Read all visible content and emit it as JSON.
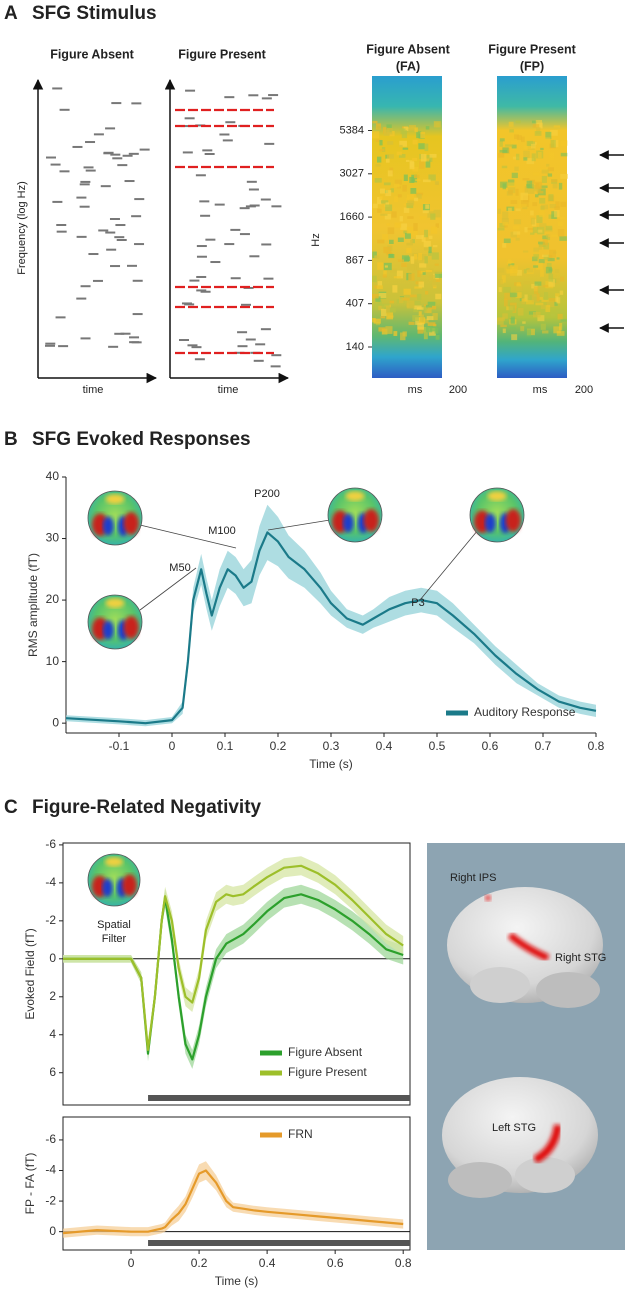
{
  "panels": [
    {
      "letter": "A",
      "title": "SFG Stimulus"
    },
    {
      "letter": "B",
      "title": "SFG Evoked Responses"
    },
    {
      "letter": "C",
      "title": "Figure-Related Negativity"
    }
  ],
  "panel_a": {
    "schematic_titles": [
      "Figure Absent",
      "Figure Present"
    ],
    "schematic_y_label": "Frequency (log Hz)",
    "schematic_x_label": "time",
    "spectrogram_titles": [
      [
        "Figure Absent",
        "(FA)"
      ],
      [
        "Figure Present",
        "(FP)"
      ]
    ],
    "spectrogram_y_label": "Hz",
    "spectrogram_yticks": [
      140,
      407,
      867,
      1660,
      3027,
      5384
    ],
    "spectrogram_x_unit": "ms",
    "spectrogram_x_end": 200
  },
  "brain_labels": [
    "Right IPS",
    "Right STG",
    "Left STG"
  ],
  "chart_data": [
    {
      "type": "line",
      "x_label": "Time (s)",
      "y_label": "RMS amplitude (fT)",
      "x": [
        -0.2,
        -0.1,
        -0.05,
        0,
        0.02,
        0.03,
        0.04,
        0.055,
        0.065,
        0.075,
        0.09,
        0.105,
        0.12,
        0.135,
        0.15,
        0.165,
        0.18,
        0.2,
        0.22,
        0.25,
        0.28,
        0.3,
        0.33,
        0.36,
        0.38,
        0.41,
        0.44,
        0.47,
        0.5,
        0.53,
        0.57,
        0.61,
        0.65,
        0.69,
        0.73,
        0.77,
        0.8
      ],
      "xlim": [
        -0.2,
        0.8
      ],
      "xticks": [
        -0.1,
        0,
        0.1,
        0.2,
        0.3,
        0.4,
        0.5,
        0.6,
        0.7,
        0.8
      ],
      "ylim": [
        -1.6,
        40
      ],
      "yticks": [
        0,
        10,
        20,
        30,
        40
      ],
      "legend": "lower right",
      "series": [
        {
          "name": "Auditory Response",
          "color": "#1b7a89",
          "band_color": "#93d1d8",
          "values": [
            0.8,
            0.3,
            0,
            0.5,
            2.5,
            10,
            20,
            25,
            21,
            17.5,
            22,
            25,
            24,
            22,
            23,
            28,
            31,
            29.5,
            27,
            25,
            22,
            19.5,
            17,
            16,
            17,
            18.5,
            19.5,
            20,
            19.5,
            17.5,
            14.5,
            11,
            8,
            5.5,
            3.5,
            2.5,
            2
          ],
          "error": [
            0.5,
            0.5,
            0.5,
            0.5,
            1,
            1.5,
            2,
            2.5,
            2.5,
            2.5,
            3,
            3,
            3,
            3,
            3.5,
            4,
            4.5,
            4,
            3.5,
            3,
            2.5,
            2,
            1.5,
            1.5,
            1.5,
            2,
            2,
            2,
            2,
            2,
            1.5,
            1.5,
            1.5,
            1,
            1,
            1,
            1
          ]
        }
      ],
      "annotations": [
        "M50",
        "M100",
        "P200",
        "P3"
      ]
    },
    {
      "type": "line",
      "y_label": "Evoked Field (fT)",
      "x": [
        -0.2,
        -0.1,
        0,
        0.03,
        0.05,
        0.07,
        0.09,
        0.1,
        0.12,
        0.14,
        0.16,
        0.18,
        0.2,
        0.22,
        0.25,
        0.28,
        0.3,
        0.33,
        0.36,
        0.4,
        0.45,
        0.5,
        0.55,
        0.6,
        0.65,
        0.7,
        0.75,
        0.8
      ],
      "xlim": [
        -0.2,
        0.82
      ],
      "ylim": [
        7.7,
        -6.1
      ],
      "yticks": [
        -6,
        -4,
        -2,
        0,
        2,
        4,
        6
      ],
      "zero_line": true,
      "significance": [
        0.05,
        0.82
      ],
      "legend": "lower right",
      "series": [
        {
          "name": "Figure Absent",
          "color": "#2ca02c",
          "band_color": "#9fd79a",
          "values": [
            0,
            0,
            0,
            1,
            5,
            2,
            -2,
            -3.2,
            -1,
            2,
            4.5,
            5.3,
            4,
            2,
            0,
            -0.8,
            -1,
            -1.3,
            -1.8,
            -2.5,
            -3.2,
            -3.4,
            -3.1,
            -2.6,
            -2,
            -1.3,
            -0.5,
            -0.2
          ],
          "error": [
            0.2,
            0.2,
            0.2,
            0.3,
            0.4,
            0.4,
            0.4,
            0.5,
            0.5,
            0.5,
            0.5,
            0.5,
            0.5,
            0.5,
            0.5,
            0.5,
            0.5,
            0.5,
            0.5,
            0.5,
            0.5,
            0.5,
            0.5,
            0.5,
            0.5,
            0.5,
            0.5,
            0.5
          ]
        },
        {
          "name": "Figure Present",
          "color": "#9dbf2a",
          "band_color": "#d6e6a3",
          "values": [
            0,
            0,
            0,
            1,
            4.8,
            2,
            -2,
            -3.3,
            -2,
            0.5,
            2,
            2.3,
            1,
            -1.5,
            -3,
            -3.4,
            -3.3,
            -3.4,
            -3.8,
            -4.3,
            -4.8,
            -4.9,
            -4.5,
            -3.9,
            -3.1,
            -2.2,
            -1.3,
            -0.7
          ],
          "error": [
            0.2,
            0.2,
            0.2,
            0.3,
            0.4,
            0.4,
            0.4,
            0.5,
            0.5,
            0.5,
            0.5,
            0.5,
            0.5,
            0.5,
            0.5,
            0.5,
            0.5,
            0.5,
            0.5,
            0.5,
            0.5,
            0.5,
            0.5,
            0.5,
            0.5,
            0.5,
            0.5,
            0.5
          ]
        }
      ],
      "annotations": [
        "Spatial",
        "Filter"
      ]
    },
    {
      "type": "line",
      "x_label": "Time (s)",
      "y_label": "FP - FA (fT)",
      "x": [
        -0.2,
        -0.1,
        0,
        0.03,
        0.05,
        0.07,
        0.09,
        0.1,
        0.12,
        0.14,
        0.16,
        0.18,
        0.2,
        0.22,
        0.25,
        0.28,
        0.3,
        0.33,
        0.36,
        0.4,
        0.45,
        0.5,
        0.55,
        0.6,
        0.65,
        0.7,
        0.75,
        0.8
      ],
      "xlim": [
        -0.2,
        0.82
      ],
      "xticks": [
        0,
        0.2,
        0.4,
        0.6,
        0.8
      ],
      "ylim": [
        1.2,
        -7.5
      ],
      "yticks": [
        -6,
        -4,
        -2,
        0
      ],
      "zero_line": true,
      "significance": [
        0.05,
        0.82
      ],
      "legend": "upper right",
      "series": [
        {
          "name": "FRN",
          "color": "#e59a2a",
          "band_color": "#f6cf98",
          "values": [
            0.1,
            -0.1,
            0,
            0,
            0,
            -0.1,
            -0.2,
            -0.3,
            -0.8,
            -1.2,
            -1.8,
            -2.8,
            -3.8,
            -4,
            -3.2,
            -2,
            -1.6,
            -1.5,
            -1.4,
            -1.3,
            -1.2,
            -1.1,
            -1,
            -0.9,
            -0.8,
            -0.7,
            -0.6,
            -0.5
          ],
          "error": [
            0.3,
            0.3,
            0.3,
            0.3,
            0.3,
            0.3,
            0.3,
            0.3,
            0.4,
            0.5,
            0.5,
            0.6,
            0.6,
            0.6,
            0.5,
            0.4,
            0.3,
            0.3,
            0.3,
            0.3,
            0.3,
            0.3,
            0.3,
            0.3,
            0.3,
            0.3,
            0.3,
            0.3
          ]
        }
      ]
    }
  ]
}
